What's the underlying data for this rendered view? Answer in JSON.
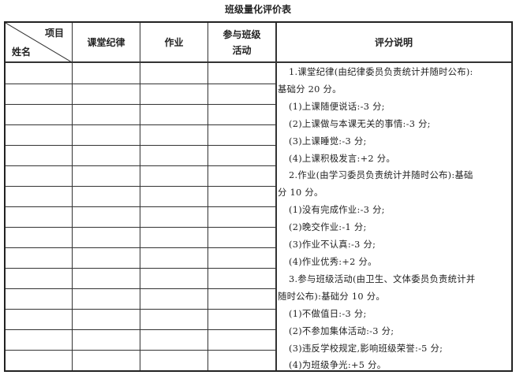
{
  "title": "班级量化评价表",
  "header": {
    "diag_top": "项目",
    "diag_bottom": "姓名",
    "col1": "课堂纪律",
    "col2": "作业",
    "col3_line1": "参与班级",
    "col3_line2": "活动",
    "col4": "评分说明"
  },
  "rows": 15,
  "description": [
    {
      "text": "1.课堂纪律(由纪律委员负责统计并随时公布):",
      "indent": true
    },
    {
      "text": "基础分 20 分。",
      "indent": false
    },
    {
      "text": "(1)上课随便说话:-3 分;",
      "indent": true
    },
    {
      "text": "(2)上课做与本课无关的事情:-3 分;",
      "indent": true
    },
    {
      "text": "(3)上课睡觉:-3 分;",
      "indent": true
    },
    {
      "text": "(4)上课积极发言:+2 分。",
      "indent": true
    },
    {
      "text": "2.作业(由学习委员负责统计并随时公布):基础",
      "indent": true
    },
    {
      "text": "分 10 分。",
      "indent": false
    },
    {
      "text": "(1)没有完成作业:-3 分;",
      "indent": true
    },
    {
      "text": "(2)晚交作业:-1 分;",
      "indent": true
    },
    {
      "text": "(3)作业不认真:-3 分;",
      "indent": true
    },
    {
      "text": "(4)作业优秀:+2 分。",
      "indent": true
    },
    {
      "text": "3.参与班级活动(由卫生、文体委员负责统计并",
      "indent": true
    },
    {
      "text": "随时公布):基础分 10 分。",
      "indent": false
    },
    {
      "text": "(1)不做值日:-3 分;",
      "indent": true
    },
    {
      "text": "(2)不参加集体活动:-3 分;",
      "indent": true
    },
    {
      "text": "(3)违反学校规定,影响班级荣誉:-5 分;",
      "indent": true
    },
    {
      "text": "(4)为班级争光:+5 分。",
      "indent": true
    }
  ]
}
